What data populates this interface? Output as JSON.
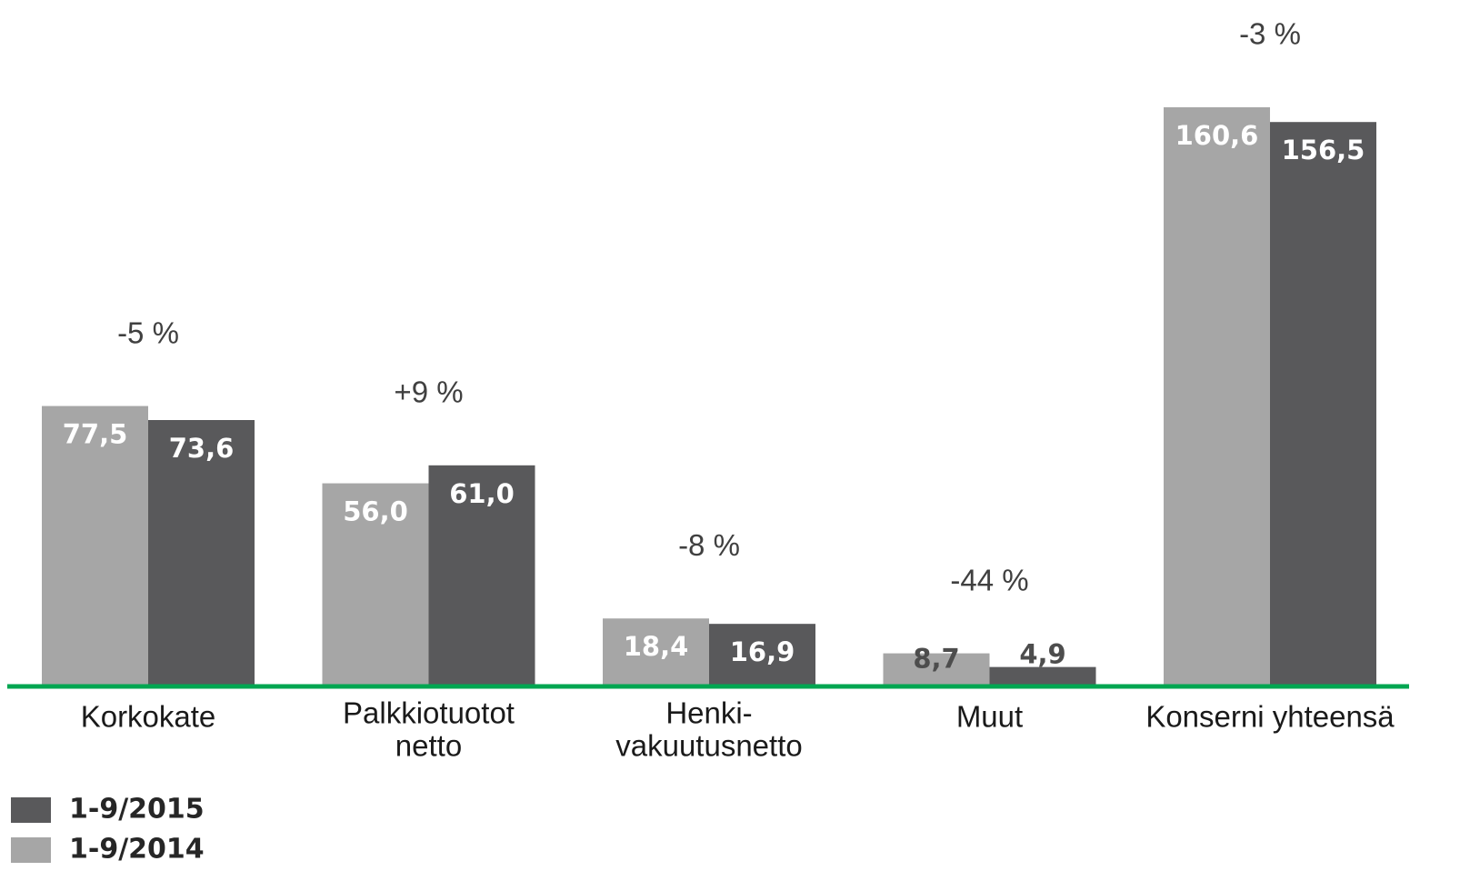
{
  "chart_data": {
    "type": "bar",
    "categories": [
      [
        "Korkokate"
      ],
      [
        "Palkkiotuotot",
        "netto"
      ],
      [
        "Henki-",
        "vakuutusnetto"
      ],
      [
        "Muut"
      ],
      [
        "Konserni yhteensä"
      ]
    ],
    "series": [
      {
        "name": "1-9/2014",
        "color": "#a6a6a6",
        "values": [
          77.5,
          56.0,
          18.4,
          8.7,
          160.6
        ],
        "value_labels": [
          "77,5",
          "56,0",
          "18,4",
          "8,7",
          "160,6"
        ]
      },
      {
        "name": "1-9/2015",
        "color": "#59595b",
        "values": [
          73.6,
          61.0,
          16.9,
          4.9,
          156.5
        ],
        "value_labels": [
          "73,6",
          "61,0",
          "16,9",
          "4,9",
          "156,5"
        ]
      }
    ],
    "annotations": [
      "-5 %",
      "+9 %",
      "-8 %",
      "-44 %",
      "-3 %"
    ],
    "baseline_color": "#00a651"
  }
}
